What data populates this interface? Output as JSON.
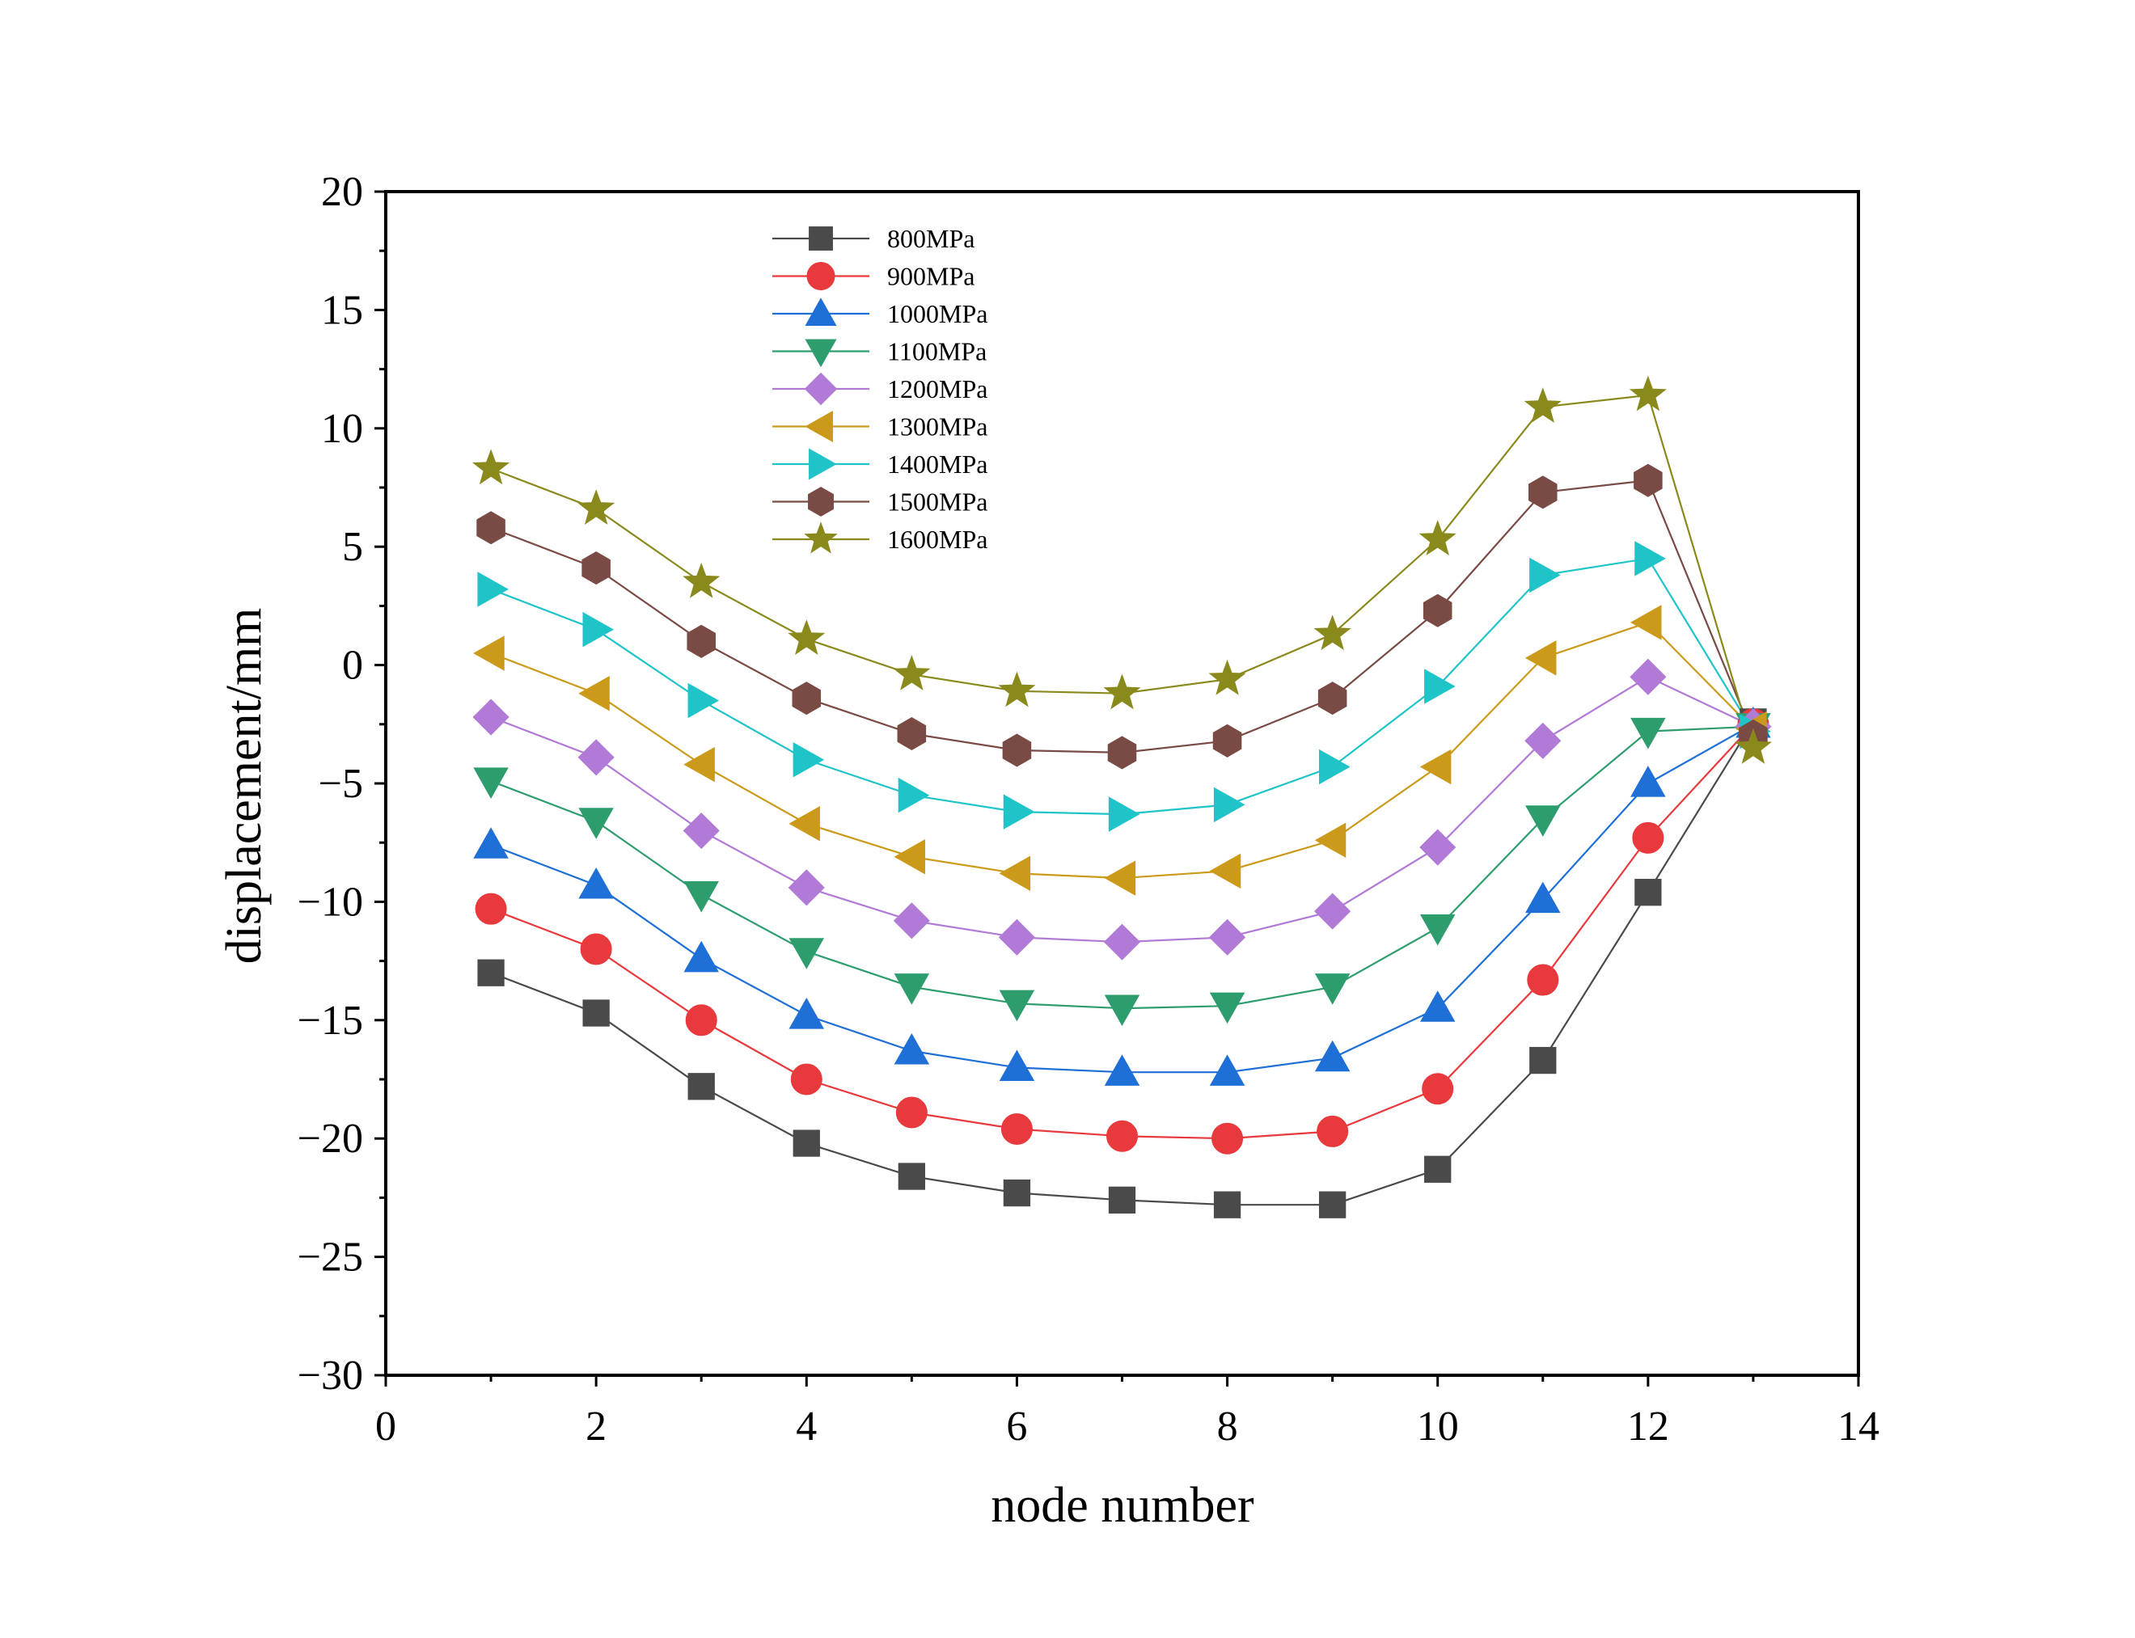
{
  "chart_data": {
    "type": "line",
    "title": "",
    "xlabel": "node number",
    "ylabel": "displacement/mm",
    "xlim": [
      0,
      14
    ],
    "ylim": [
      -30,
      20
    ],
    "xticks": [
      0,
      2,
      4,
      6,
      8,
      10,
      12,
      14
    ],
    "yticks": [
      -30,
      -25,
      -20,
      -15,
      -10,
      -5,
      0,
      5,
      10,
      15,
      20
    ],
    "xtick_labels": [
      "0",
      "2",
      "4",
      "6",
      "8",
      "10",
      "12",
      "14"
    ],
    "ytick_labels": [
      "−30",
      "−25",
      "−20",
      "−15",
      "−10",
      "−5",
      "0",
      "5",
      "10",
      "15",
      "20"
    ],
    "grid": false,
    "legend_position": "top-left",
    "x": [
      1,
      2,
      3,
      4,
      5,
      6,
      7,
      8,
      9,
      10,
      11,
      12,
      13
    ],
    "series": [
      {
        "name": "800MPa",
        "color": "#4a4a4a",
        "marker": "square",
        "values": [
          -13.0,
          -14.7,
          -17.8,
          -20.2,
          -21.6,
          -22.3,
          -22.6,
          -22.8,
          -22.8,
          -21.3,
          -16.7,
          -9.6,
          -2.4
        ]
      },
      {
        "name": "900MPa",
        "color": "#e8393c",
        "marker": "circle",
        "values": [
          -10.3,
          -12.0,
          -15.0,
          -17.5,
          -18.9,
          -19.6,
          -19.9,
          -20.0,
          -19.7,
          -17.9,
          -13.3,
          -7.3,
          -2.5
        ]
      },
      {
        "name": "1000MPa",
        "color": "#1e6fd6",
        "marker": "triangle-up",
        "values": [
          -7.6,
          -9.3,
          -12.4,
          -14.8,
          -16.3,
          -17.0,
          -17.2,
          -17.2,
          -16.6,
          -14.5,
          -9.9,
          -5.0,
          -2.5
        ]
      },
      {
        "name": "1100MPa",
        "color": "#2e9d6e",
        "marker": "triangle-down",
        "values": [
          -4.9,
          -6.6,
          -9.7,
          -12.1,
          -13.6,
          -14.3,
          -14.5,
          -14.4,
          -13.6,
          -11.1,
          -6.5,
          -2.8,
          -2.6
        ]
      },
      {
        "name": "1200MPa",
        "color": "#b07ad6",
        "marker": "diamond",
        "values": [
          -2.2,
          -3.9,
          -7.0,
          -9.4,
          -10.8,
          -11.5,
          -11.7,
          -11.5,
          -10.4,
          -7.7,
          -3.2,
          -0.5,
          -2.6
        ]
      },
      {
        "name": "1300MPa",
        "color": "#cc9a1a",
        "marker": "triangle-left",
        "values": [
          0.5,
          -1.2,
          -4.2,
          -6.7,
          -8.1,
          -8.8,
          -9.0,
          -8.7,
          -7.4,
          -4.3,
          0.3,
          1.8,
          -2.7
        ]
      },
      {
        "name": "1400MPa",
        "color": "#1ec4c8",
        "marker": "triangle-right",
        "values": [
          3.2,
          1.5,
          -1.5,
          -4.0,
          -5.5,
          -6.2,
          -6.3,
          -5.9,
          -4.3,
          -0.9,
          3.8,
          4.5,
          -2.8
        ]
      },
      {
        "name": "1500MPa",
        "color": "#7a4a45",
        "marker": "hexagon",
        "values": [
          5.8,
          4.1,
          1.0,
          -1.4,
          -2.9,
          -3.6,
          -3.7,
          -3.2,
          -1.4,
          2.3,
          7.3,
          7.8,
          -3.0
        ]
      },
      {
        "name": "1600MPa",
        "color": "#8a8a1c",
        "marker": "star",
        "values": [
          8.3,
          6.6,
          3.5,
          1.1,
          -0.4,
          -1.1,
          -1.2,
          -0.6,
          1.3,
          5.3,
          10.9,
          11.4,
          -3.5
        ]
      }
    ]
  }
}
